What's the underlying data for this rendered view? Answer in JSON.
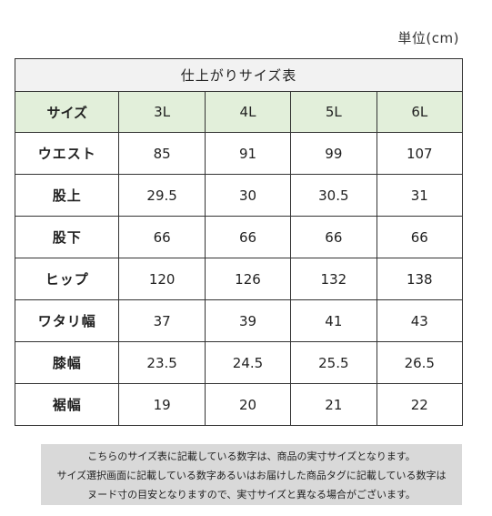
{
  "unit_label": "単位(cm)",
  "table": {
    "title": "仕上がりサイズ表",
    "header_label": "サイズ",
    "sizes": [
      "3L",
      "4L",
      "5L",
      "6L"
    ],
    "rows": [
      {
        "label": "ウエスト",
        "values": [
          "85",
          "91",
          "99",
          "107"
        ]
      },
      {
        "label": "股上",
        "values": [
          "29.5",
          "30",
          "30.5",
          "31"
        ]
      },
      {
        "label": "股下",
        "values": [
          "66",
          "66",
          "66",
          "66"
        ]
      },
      {
        "label": "ヒップ",
        "values": [
          "120",
          "126",
          "132",
          "138"
        ]
      },
      {
        "label": "ワタリ幅",
        "values": [
          "37",
          "39",
          "41",
          "43"
        ]
      },
      {
        "label": "膝幅",
        "values": [
          "23.5",
          "24.5",
          "25.5",
          "26.5"
        ]
      },
      {
        "label": "裾幅",
        "values": [
          "19",
          "20",
          "21",
          "22"
        ]
      }
    ]
  },
  "note": {
    "lines": [
      "こちらのサイズ表に記載している数字は、商品の実寸サイズとなります。",
      "サイズ選択画面に記載している数字あるいはお届けした商品タグに記載している数字は",
      "ヌード寸の目安となりますので、実寸サイズと異なる場合がございます。"
    ]
  },
  "colors": {
    "title_bg": "#f2f2f2",
    "header_bg": "#e2efda",
    "note_bg": "#d9d9d9",
    "border": "#333333"
  }
}
